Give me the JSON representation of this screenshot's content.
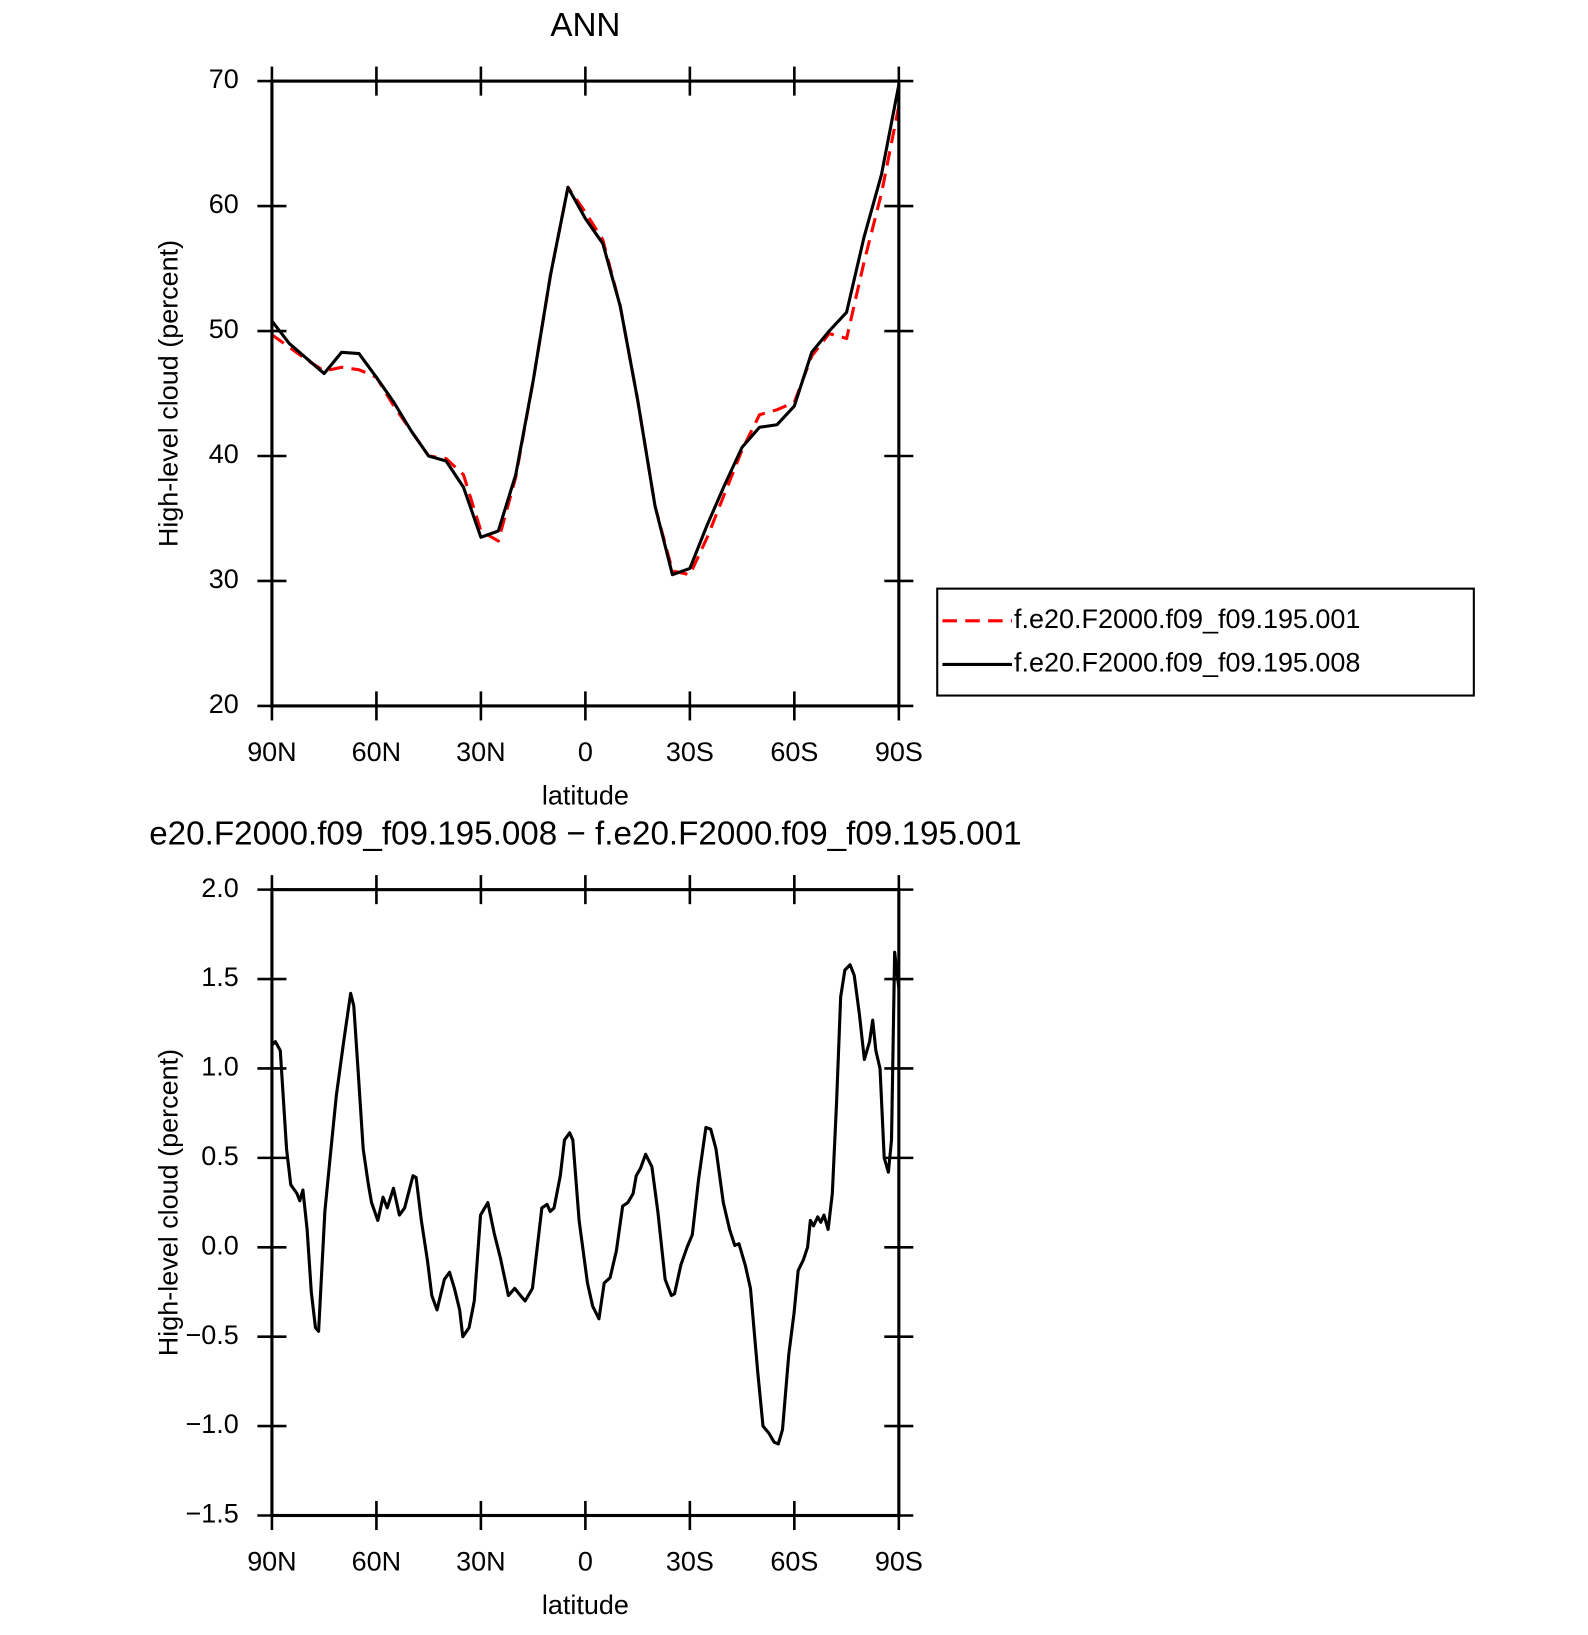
{
  "chart_data": [
    {
      "type": "line",
      "title": "ANN",
      "xlabel": "latitude",
      "ylabel": "High-level cloud (percent)",
      "x": [
        90,
        85,
        80,
        75,
        70,
        65,
        60,
        55,
        50,
        45,
        40,
        35,
        30,
        25,
        20,
        15,
        10,
        5,
        0,
        -5,
        -10,
        -15,
        -20,
        -25,
        -30,
        -35,
        -40,
        -45,
        -50,
        -55,
        -60,
        -65,
        -70,
        -75,
        -80,
        -85,
        -90
      ],
      "series": [
        {
          "name": "f.e20.F2000.f09_f09.195.001",
          "color": "#ff0000",
          "linestyle": "dashed",
          "values": [
            49.7,
            48.7,
            47.7,
            46.8,
            47.1,
            46.9,
            46.3,
            44,
            42,
            40,
            39.8,
            38.5,
            34,
            33.2,
            38.3,
            46,
            54.5,
            61.5,
            59.5,
            57.3,
            52,
            44.5,
            36,
            30.8,
            30.5,
            33.5,
            37,
            40.5,
            43.3,
            43.7,
            44.3,
            48,
            49.8,
            49.4,
            55.5,
            61,
            68
          ]
        },
        {
          "name": "f.e20.F2000.f09_f09.195.008",
          "color": "#000000",
          "linestyle": "solid",
          "values": [
            50.8,
            49,
            47.8,
            46.6,
            48.3,
            48.2,
            46.3,
            44.3,
            42,
            40,
            39.6,
            37.5,
            33.5,
            34,
            38.5,
            46,
            54.5,
            61.5,
            59,
            57,
            52,
            44.5,
            36,
            30.5,
            31,
            34.5,
            37.7,
            40.7,
            42.3,
            42.5,
            44,
            48.3,
            50,
            51.5,
            57.5,
            62.5,
            69.7
          ]
        }
      ],
      "xlim": [
        90,
        -90
      ],
      "xticks": [
        {
          "value": 90,
          "label": "90N"
        },
        {
          "value": 60,
          "label": "60N"
        },
        {
          "value": 30,
          "label": "30N"
        },
        0,
        {
          "value": -30,
          "label": "30S"
        },
        {
          "value": -60,
          "label": "60S"
        },
        {
          "value": -90,
          "label": "90S"
        }
      ],
      "ylim": [
        20,
        70
      ],
      "yticks": [
        20,
        30,
        40,
        50,
        60,
        70
      ],
      "legend": "right"
    },
    {
      "type": "line",
      "title": "e20.F2000.f09_f09.195.008 − f.e20.F2000.f09_f09.195.001",
      "xlabel": "latitude",
      "ylabel": "High-level cloud (percent)",
      "x": [
        90,
        89,
        87.6,
        85.8,
        84.6,
        82.8,
        82.0,
        81.1,
        79.9,
        78.7,
        77.5,
        76.6,
        74.8,
        73.3,
        71.5,
        69.4,
        67.4,
        66.5,
        65.3,
        63.8,
        62.3,
        61.4,
        59.6,
        58.1,
        56.9,
        55.1,
        53.4,
        51.9,
        49.5,
        48.6,
        47.1,
        45.3,
        44.1,
        42.6,
        40.5,
        39.0,
        37.6,
        36.1,
        35.2,
        33.4,
        31.9,
        30.1,
        28.0,
        26.2,
        24.4,
        22.1,
        20.3,
        18.2,
        17.3,
        15.2,
        12.5,
        11.0,
        10.1,
        9.0,
        7.2,
        6.0,
        4.5,
        3.6,
        1.8,
        -0.6,
        -2.1,
        -3.9,
        -5.4,
        -7.1,
        -8.9,
        -10.7,
        -12.2,
        -13.7,
        -14.6,
        -15.8,
        -17.3,
        -19.1,
        -20.8,
        -22.9,
        -24.7,
        -25.6,
        -27.4,
        -29.2,
        -30.7,
        -32.5,
        -34.6,
        -36.0,
        -37.5,
        -39.6,
        -41.4,
        -42.9,
        -44.1,
        -45.9,
        -47.4,
        -49.5,
        -51.0,
        -52.7,
        -54.2,
        -55.4,
        -56.6,
        -58.4,
        -59.9,
        -61.1,
        -62.6,
        -63.8,
        -64.6,
        -65.5,
        -66.7,
        -67.6,
        -68.5,
        -69.7,
        -70.9,
        -72.1,
        -73.3,
        -74.5,
        -76.0,
        -77.2,
        -78.7,
        -80.1,
        -81.6,
        -82.5,
        -83.4,
        -84.6,
        -85.8,
        -87.0,
        -87.9,
        -88.8,
        -90
      ],
      "values": [
        1.13,
        1.15,
        1.1,
        0.55,
        0.35,
        0.3,
        0.26,
        0.32,
        0.1,
        -0.25,
        -0.45,
        -0.47,
        0.2,
        0.5,
        0.85,
        1.15,
        1.42,
        1.35,
        1.0,
        0.55,
        0.35,
        0.25,
        0.15,
        0.28,
        0.22,
        0.33,
        0.18,
        0.22,
        0.4,
        0.39,
        0.15,
        -0.08,
        -0.27,
        -0.35,
        -0.18,
        -0.14,
        -0.23,
        -0.35,
        -0.5,
        -0.45,
        -0.3,
        0.18,
        0.25,
        0.08,
        -0.06,
        -0.27,
        -0.23,
        -0.28,
        -0.3,
        -0.23,
        0.22,
        0.24,
        0.2,
        0.22,
        0.4,
        0.6,
        0.64,
        0.6,
        0.15,
        -0.2,
        -0.33,
        -0.4,
        -0.2,
        -0.17,
        -0.02,
        0.23,
        0.25,
        0.3,
        0.4,
        0.44,
        0.52,
        0.45,
        0.2,
        -0.18,
        -0.27,
        -0.26,
        -0.1,
        0.0,
        0.07,
        0.38,
        0.67,
        0.66,
        0.55,
        0.25,
        0.1,
        0.01,
        0.02,
        -0.1,
        -0.23,
        -0.7,
        -1.0,
        -1.04,
        -1.09,
        -1.1,
        -1.02,
        -0.6,
        -0.37,
        -0.13,
        -0.07,
        0.0,
        0.15,
        0.12,
        0.17,
        0.14,
        0.18,
        0.1,
        0.3,
        0.8,
        1.4,
        1.55,
        1.58,
        1.52,
        1.3,
        1.05,
        1.15,
        1.27,
        1.1,
        1.0,
        0.5,
        0.42,
        0.6,
        1.65,
        1.45
      ],
      "color": "#000000",
      "xlim": [
        90,
        -90
      ],
      "xticks": [
        {
          "value": 90,
          "label": "90N"
        },
        {
          "value": 60,
          "label": "60N"
        },
        {
          "value": 30,
          "label": "30N"
        },
        0,
        {
          "value": -30,
          "label": "30S"
        },
        {
          "value": -60,
          "label": "60S"
        },
        {
          "value": -90,
          "label": "90S"
        }
      ],
      "ylim": [
        -1.5,
        2.0
      ],
      "yticks": [
        {
          "value": -1.5,
          "label": "−1.5"
        },
        {
          "value": -1.0,
          "label": "−1.0"
        },
        {
          "value": -0.5,
          "label": "−0.5"
        },
        {
          "value": 0,
          "label": "0.0"
        },
        {
          "value": 0.5,
          "label": "0.5"
        },
        {
          "value": 1.0,
          "label": "1.0"
        },
        {
          "value": 1.5,
          "label": "1.5"
        },
        {
          "value": 2.0,
          "label": "2.0"
        }
      ]
    }
  ]
}
